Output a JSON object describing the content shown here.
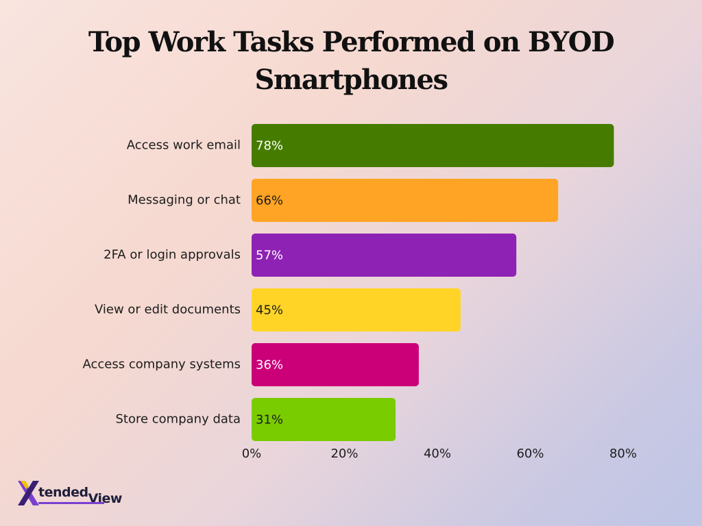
{
  "chart_data": {
    "type": "bar",
    "orientation": "horizontal",
    "title": "Top Work Tasks Performed on BYOD Smartphones",
    "categories": [
      "Access work email",
      "Messaging or chat",
      "2FA or login approvals",
      "View or edit documents",
      "Access company systems",
      "Store company data"
    ],
    "values": [
      78,
      66,
      57,
      45,
      36,
      31
    ],
    "value_labels": [
      "78%",
      "66%",
      "57%",
      "45%",
      "36%",
      "31%"
    ],
    "colors": [
      "#457c00",
      "#ffa424",
      "#8e22b4",
      "#ffd426",
      "#cb0078",
      "#79cc00"
    ],
    "value_label_colors": [
      "#ffffff",
      "#1c1c1c",
      "#ffffff",
      "#1c1c1c",
      "#ffffff",
      "#1c1c1c"
    ],
    "xlim": [
      0,
      80
    ],
    "xticks": [
      0,
      20,
      40,
      60,
      80
    ],
    "xtick_labels": [
      "0%",
      "20%",
      "40%",
      "60%",
      "80%"
    ],
    "xlabel": "",
    "ylabel": "",
    "grid": false,
    "legend": "none"
  },
  "logo": {
    "name": "xtended-view-logo",
    "text_part1": "tended",
    "text_part2": "View",
    "colors": [
      "#7a3fd0",
      "#1f1f3a",
      "#f2c200"
    ]
  }
}
